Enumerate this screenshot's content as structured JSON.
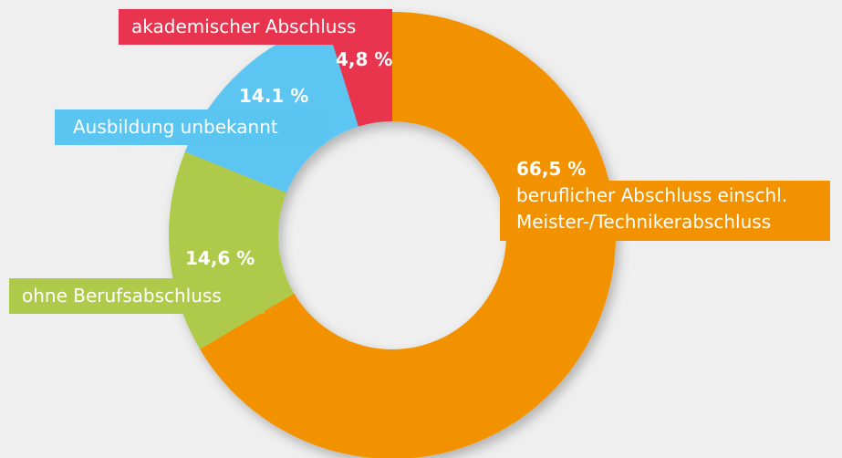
{
  "chart_data": {
    "type": "donut",
    "categories": [
      "beruflicher Abschluss einschl. Meister-/Technikerabschluss",
      "ohne Berufsabschluss",
      "Ausbildung unbekannt",
      "akademischer Abschluss"
    ],
    "values": [
      66.5,
      14.6,
      14.1,
      4.8
    ],
    "value_labels": [
      "66,5 %",
      "14,6 %",
      "14.1 %",
      "4,8 %"
    ],
    "colors": [
      "#f39200",
      "#afca4b",
      "#5bc5f2",
      "#e8344e"
    ]
  }
}
